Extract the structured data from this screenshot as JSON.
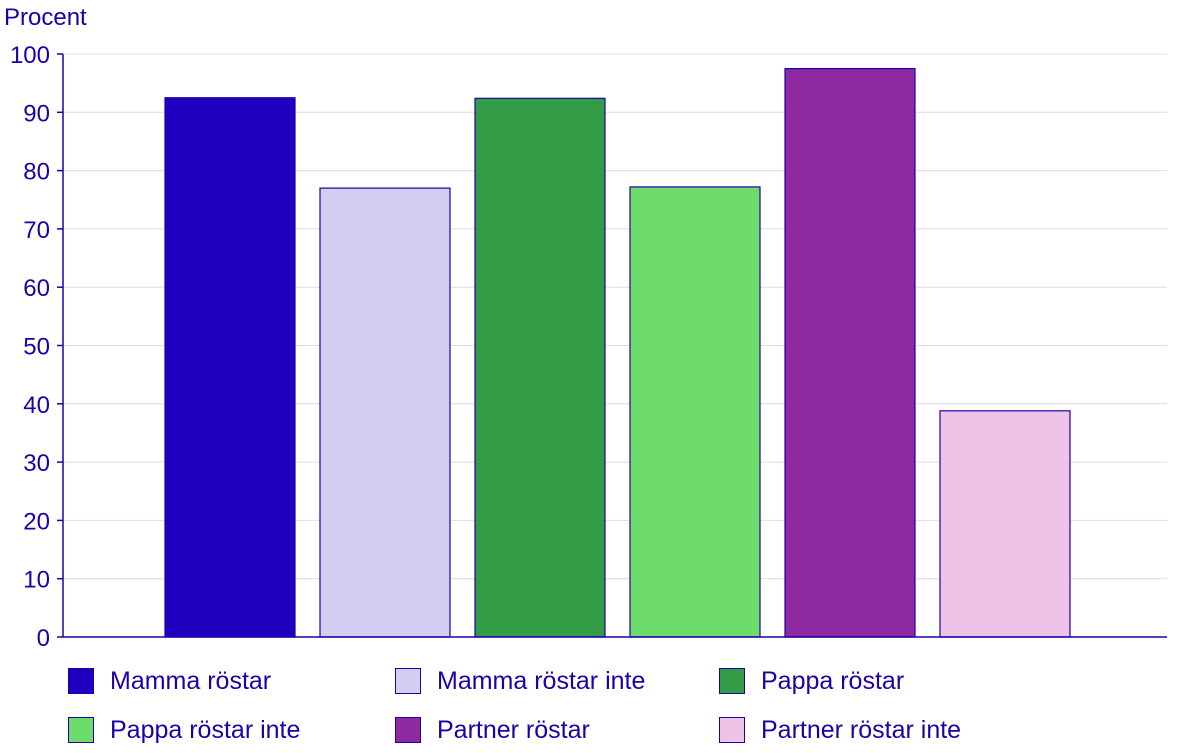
{
  "chart_data": {
    "type": "bar",
    "ylabel": "Procent",
    "ylim": [
      0,
      100
    ],
    "yticks": [
      0,
      10,
      20,
      30,
      40,
      50,
      60,
      70,
      80,
      90,
      100
    ],
    "grid": true,
    "legend_position": "bottom",
    "series": [
      {
        "name": "Mamma röstar",
        "value": 92.5,
        "color": "#1e00be"
      },
      {
        "name": "Mamma röstar inte",
        "value": 77,
        "color": "#d3cdf2"
      },
      {
        "name": "Pappa röstar",
        "value": 92.4,
        "color": "#339c46"
      },
      {
        "name": "Pappa röstar inte",
        "value": 77.2,
        "color": "#6ddc6b"
      },
      {
        "name": "Partner röstar",
        "value": 97.5,
        "color": "#8e29a0"
      },
      {
        "name": "Partner röstar inte",
        "value": 38.8,
        "color": "#eec3e5"
      }
    ]
  }
}
